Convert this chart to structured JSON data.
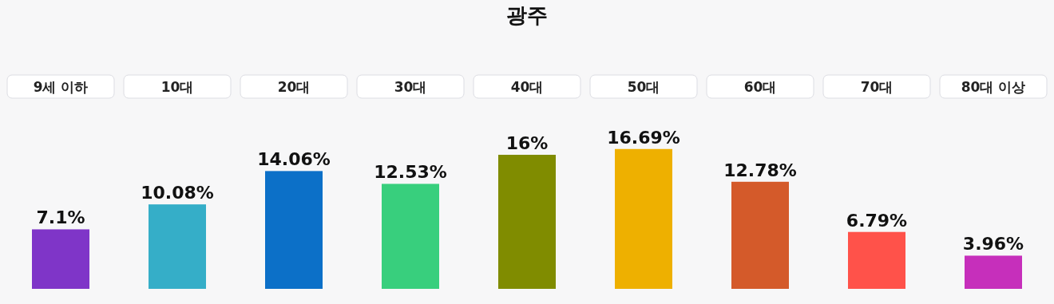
{
  "chart_data": {
    "type": "bar",
    "title": "광주",
    "categories": [
      "9세 이하",
      "10대",
      "20대",
      "30대",
      "40대",
      "50대",
      "60대",
      "70대",
      "80대 이상"
    ],
    "values": [
      7.1,
      10.08,
      14.06,
      12.53,
      16,
      16.69,
      12.78,
      6.79,
      3.96
    ],
    "value_labels": [
      "7.1%",
      "10.08%",
      "14.06%",
      "12.53%",
      "16%",
      "16.69%",
      "12.78%",
      "6.79%",
      "3.96%"
    ],
    "colors": [
      "#7f35c8",
      "#35aec8",
      "#0c70c8",
      "#38cf7d",
      "#808c00",
      "#eeb000",
      "#d45a2a",
      "#ff524a",
      "#c62fbb"
    ]
  }
}
